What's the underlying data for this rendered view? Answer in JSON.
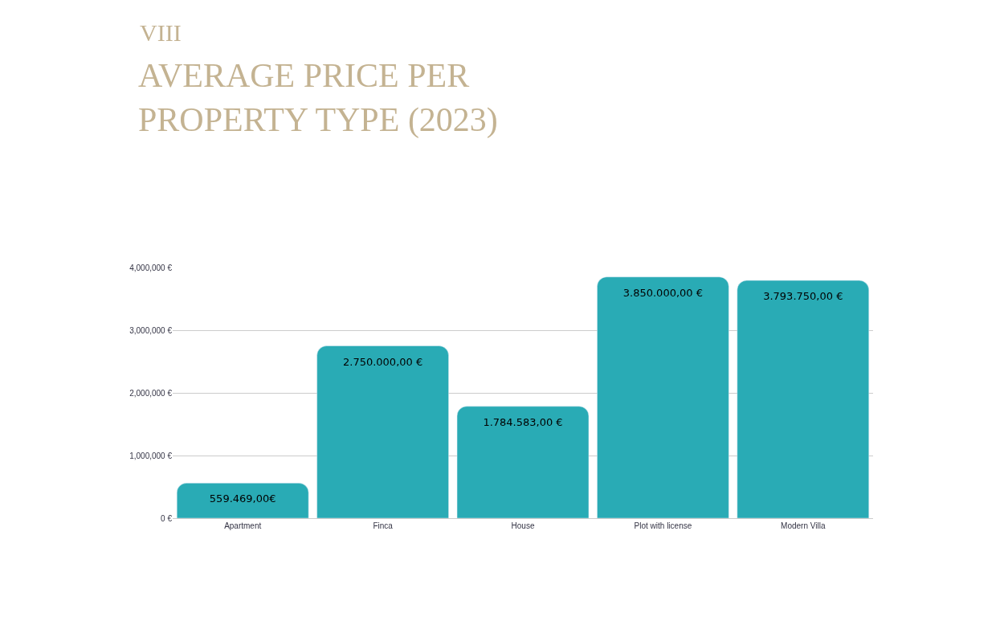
{
  "chart_data": {
    "type": "bar",
    "title": "AVERAGE PRICE PER\nPROPERTY TYPE (2023)",
    "annotations": [
      "VIII"
    ],
    "categories": [
      "Apartment",
      "Finca",
      "House",
      "Plot with license",
      "Modern Villa"
    ],
    "values": [
      559469,
      2750000,
      1784583,
      3850000,
      3793750
    ],
    "value_labels": [
      "559.469,00€",
      "2.750.000,00 €",
      "1.784.583,00 €",
      "3.850.000,00 €",
      "3.793.750,00 €"
    ],
    "color": "#29abb5",
    "ylim": [
      0,
      4000000
    ],
    "yticks": [
      {
        "value": 0,
        "label": "0 €"
      },
      {
        "value": 1000000,
        "label": "1,000,000 €"
      },
      {
        "value": 2000000,
        "label": "2,000,000 €"
      },
      {
        "value": 3000000,
        "label": "3,000,000 €"
      },
      {
        "value": 4000000,
        "label": "4,000,000 €"
      }
    ],
    "grid": "y"
  }
}
